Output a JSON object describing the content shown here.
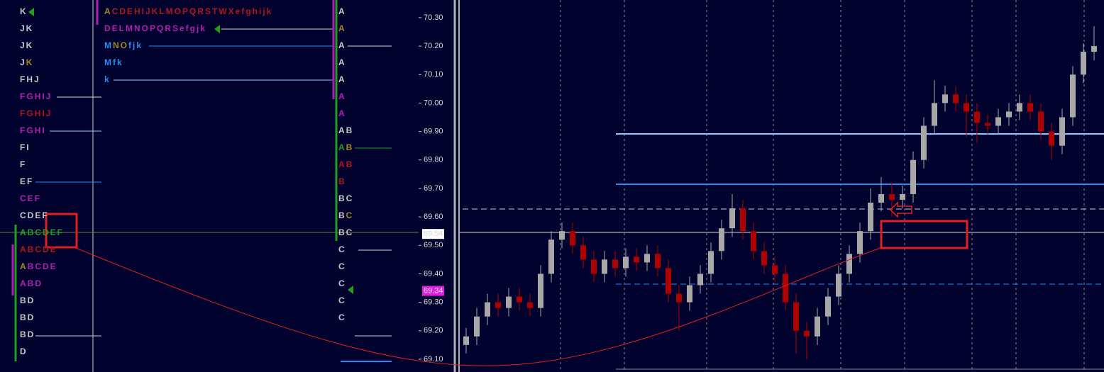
{
  "profile_left": {
    "rows": [
      [
        [
          "K",
          "#c8c8c8"
        ]
      ],
      [
        [
          "JK",
          "#c8c8c8"
        ]
      ],
      [
        [
          "JK",
          "#c8c8c8"
        ]
      ],
      [
        [
          "J",
          "#c8c8c8"
        ],
        [
          "K",
          "#a08a20"
        ]
      ],
      [
        [
          "FHJ",
          "#c8c8c8"
        ]
      ],
      [
        [
          "FGHIJ",
          "#b020b0"
        ]
      ],
      [
        [
          "FGHIJ",
          "#b01818"
        ]
      ],
      [
        [
          "FGHI",
          "#b020b0"
        ]
      ],
      [
        [
          "FI",
          "#c8c8c8"
        ]
      ],
      [
        [
          "F",
          "#c8c8c8"
        ]
      ],
      [
        [
          "EF",
          "#c8c8c8"
        ]
      ],
      [
        [
          "CEF",
          "#b020b0"
        ]
      ],
      [
        [
          "CDEF",
          "#c8c8c8"
        ]
      ],
      [
        [
          "ABCDEF",
          "#20a020"
        ]
      ],
      [
        [
          "ABCDE",
          "#b01818"
        ]
      ],
      [
        [
          "A",
          "#a08a20"
        ],
        [
          "BCDE",
          "#b020b0"
        ]
      ],
      [
        [
          "ABD",
          "#b020b0"
        ]
      ],
      [
        [
          "BD",
          "#c8c8c8"
        ]
      ],
      [
        [
          "BD",
          "#c8c8c8"
        ]
      ],
      [
        [
          "BD",
          "#c8c8c8"
        ]
      ],
      [
        [
          "D",
          "#c8c8c8"
        ]
      ]
    ]
  },
  "profile_mid": {
    "rows": [
      [
        [
          "A",
          "#a08a20"
        ],
        [
          "CDEHIJKLMOPQRSTWXefghijk",
          "#b01818"
        ]
      ],
      [
        [
          "DELMNOPQRSefgjk",
          "#b020b0"
        ]
      ],
      [
        [
          "M",
          "#2a8cf0"
        ],
        [
          "NO",
          "#a08a20"
        ],
        [
          "fjk",
          "#2a8cf0"
        ]
      ],
      [
        [
          "Mfk",
          "#2a8cf0"
        ]
      ],
      [
        [
          "k",
          "#2a8cf0"
        ]
      ]
    ]
  },
  "profile_right": {
    "rows": [
      [
        [
          "A",
          "#c8c8c8"
        ]
      ],
      [
        [
          "A",
          "#a08a20"
        ]
      ],
      [
        [
          "A",
          "#c8c8c8"
        ]
      ],
      [
        [
          "A",
          "#c8c8c8"
        ]
      ],
      [
        [
          "A",
          "#c8c8c8"
        ]
      ],
      [
        [
          "A",
          "#b020b0"
        ]
      ],
      [
        [
          "A",
          "#b020b0"
        ]
      ],
      [
        [
          "AB",
          "#c8c8c8"
        ]
      ],
      [
        [
          "A",
          "#20a020"
        ],
        [
          "B",
          "#a08a20"
        ]
      ],
      [
        [
          "AB",
          "#b01818"
        ]
      ],
      [
        [
          "B",
          "#b01818"
        ]
      ],
      [
        [
          "BC",
          "#c8c8c8"
        ]
      ],
      [
        [
          "B",
          "#c8c8c8"
        ],
        [
          "C",
          "#a08a20"
        ]
      ],
      [
        [
          "BC",
          "#c8c8c8"
        ]
      ],
      [
        [
          "C",
          "#c8c8c8"
        ]
      ],
      [
        [
          "C",
          "#c8c8c8"
        ]
      ],
      [
        [
          "C",
          "#c8c8c8"
        ]
      ],
      [
        [
          "C",
          "#c8c8c8"
        ]
      ],
      [
        [
          "C",
          "#c8c8c8"
        ]
      ]
    ]
  },
  "price_axis": {
    "ylim": [
      69.055,
      70.362
    ],
    "ticks": [
      {
        "value": 70.3,
        "label": "70.30"
      },
      {
        "value": 70.2,
        "label": "70.20"
      },
      {
        "value": 70.1,
        "label": "70.10"
      },
      {
        "value": 70.0,
        "label": "70.00"
      },
      {
        "value": 69.9,
        "label": "69.90"
      },
      {
        "value": 69.8,
        "label": "69.80"
      },
      {
        "value": 69.7,
        "label": "69.70"
      },
      {
        "value": 69.6,
        "label": "69.60"
      },
      {
        "value": 69.5,
        "label": "69.50"
      },
      {
        "value": 69.4,
        "label": "69.40"
      },
      {
        "value": 69.3,
        "label": "69.30"
      },
      {
        "value": 69.2,
        "label": "69.20"
      },
      {
        "value": 69.1,
        "label": "69.10"
      }
    ]
  },
  "price_labels": [
    {
      "value": 69.54,
      "label": "69.54",
      "bg": "#ffffff",
      "fg": "#000000"
    },
    {
      "value": 69.34,
      "label": "69.34",
      "bg": "#e020e0",
      "fg": "#ffffff"
    }
  ],
  "candle_colors": {
    "up": "#a8a8a8",
    "down": "#b00000"
  },
  "candles": [
    [
      69.15,
      69.21,
      69.12,
      69.18
    ],
    [
      69.18,
      69.28,
      69.15,
      69.25
    ],
    [
      69.25,
      69.33,
      69.22,
      69.3
    ],
    [
      69.3,
      69.33,
      69.25,
      69.28
    ],
    [
      69.28,
      69.35,
      69.25,
      69.32
    ],
    [
      69.32,
      69.35,
      69.27,
      69.3
    ],
    [
      69.3,
      69.33,
      69.25,
      69.28
    ],
    [
      69.28,
      69.43,
      69.25,
      69.4
    ],
    [
      69.4,
      69.55,
      69.37,
      69.52
    ],
    [
      69.52,
      69.58,
      69.49,
      69.55
    ],
    [
      69.55,
      69.58,
      69.47,
      69.5
    ],
    [
      69.5,
      69.53,
      69.42,
      69.45
    ],
    [
      69.45,
      69.48,
      69.37,
      69.4
    ],
    [
      69.4,
      69.48,
      69.37,
      69.45
    ],
    [
      69.45,
      69.48,
      69.39,
      69.42
    ],
    [
      69.42,
      69.49,
      69.39,
      69.46
    ],
    [
      69.46,
      69.49,
      69.41,
      69.44
    ],
    [
      69.44,
      69.5,
      69.41,
      69.47
    ],
    [
      69.47,
      69.5,
      69.39,
      69.42
    ],
    [
      69.42,
      69.45,
      69.3,
      69.33
    ],
    [
      69.33,
      69.36,
      69.2,
      69.3
    ],
    [
      69.3,
      69.39,
      69.27,
      69.36
    ],
    [
      69.36,
      69.43,
      69.33,
      69.4
    ],
    [
      69.4,
      69.51,
      69.37,
      69.48
    ],
    [
      69.48,
      69.59,
      69.45,
      69.56
    ],
    [
      69.56,
      69.68,
      69.53,
      69.63
    ],
    [
      69.63,
      69.66,
      69.52,
      69.55
    ],
    [
      69.55,
      69.58,
      69.45,
      69.48
    ],
    [
      69.48,
      69.51,
      69.4,
      69.43
    ],
    [
      69.43,
      69.46,
      69.37,
      69.4
    ],
    [
      69.4,
      69.43,
      69.27,
      69.3
    ],
    [
      69.3,
      69.33,
      69.12,
      69.2
    ],
    [
      69.2,
      69.23,
      69.1,
      69.18
    ],
    [
      69.18,
      69.28,
      69.15,
      69.25
    ],
    [
      69.25,
      69.35,
      69.22,
      69.32
    ],
    [
      69.32,
      69.43,
      69.29,
      69.4
    ],
    [
      69.4,
      69.5,
      69.37,
      69.47
    ],
    [
      69.47,
      69.58,
      69.44,
      69.55
    ],
    [
      69.55,
      69.7,
      69.52,
      69.65
    ],
    [
      69.65,
      69.74,
      69.62,
      69.68
    ],
    [
      69.68,
      69.72,
      69.6,
      69.66
    ],
    [
      69.66,
      69.71,
      69.63,
      69.68
    ],
    [
      69.68,
      69.83,
      69.65,
      69.8
    ],
    [
      69.8,
      69.95,
      69.77,
      69.92
    ],
    [
      69.92,
      70.08,
      69.89,
      70.0
    ],
    [
      70.0,
      70.06,
      69.97,
      70.03
    ],
    [
      70.03,
      70.06,
      69.97,
      70.0
    ],
    [
      70.0,
      70.03,
      69.88,
      69.97
    ],
    [
      69.97,
      70.0,
      69.86,
      69.93
    ],
    [
      69.93,
      69.96,
      69.89,
      69.92
    ],
    [
      69.92,
      69.98,
      69.89,
      69.95
    ],
    [
      69.95,
      70.0,
      69.92,
      69.97
    ],
    [
      69.97,
      70.03,
      69.94,
      70.0
    ],
    [
      70.0,
      70.03,
      69.94,
      69.97
    ],
    [
      69.97,
      70.0,
      69.87,
      69.9
    ],
    [
      69.9,
      69.93,
      69.8,
      69.85
    ],
    [
      69.85,
      69.98,
      69.82,
      69.95
    ],
    [
      69.95,
      70.13,
      69.92,
      70.1
    ],
    [
      70.1,
      70.21,
      70.07,
      70.18
    ],
    [
      70.18,
      70.27,
      70.15,
      70.2
    ]
  ]
}
